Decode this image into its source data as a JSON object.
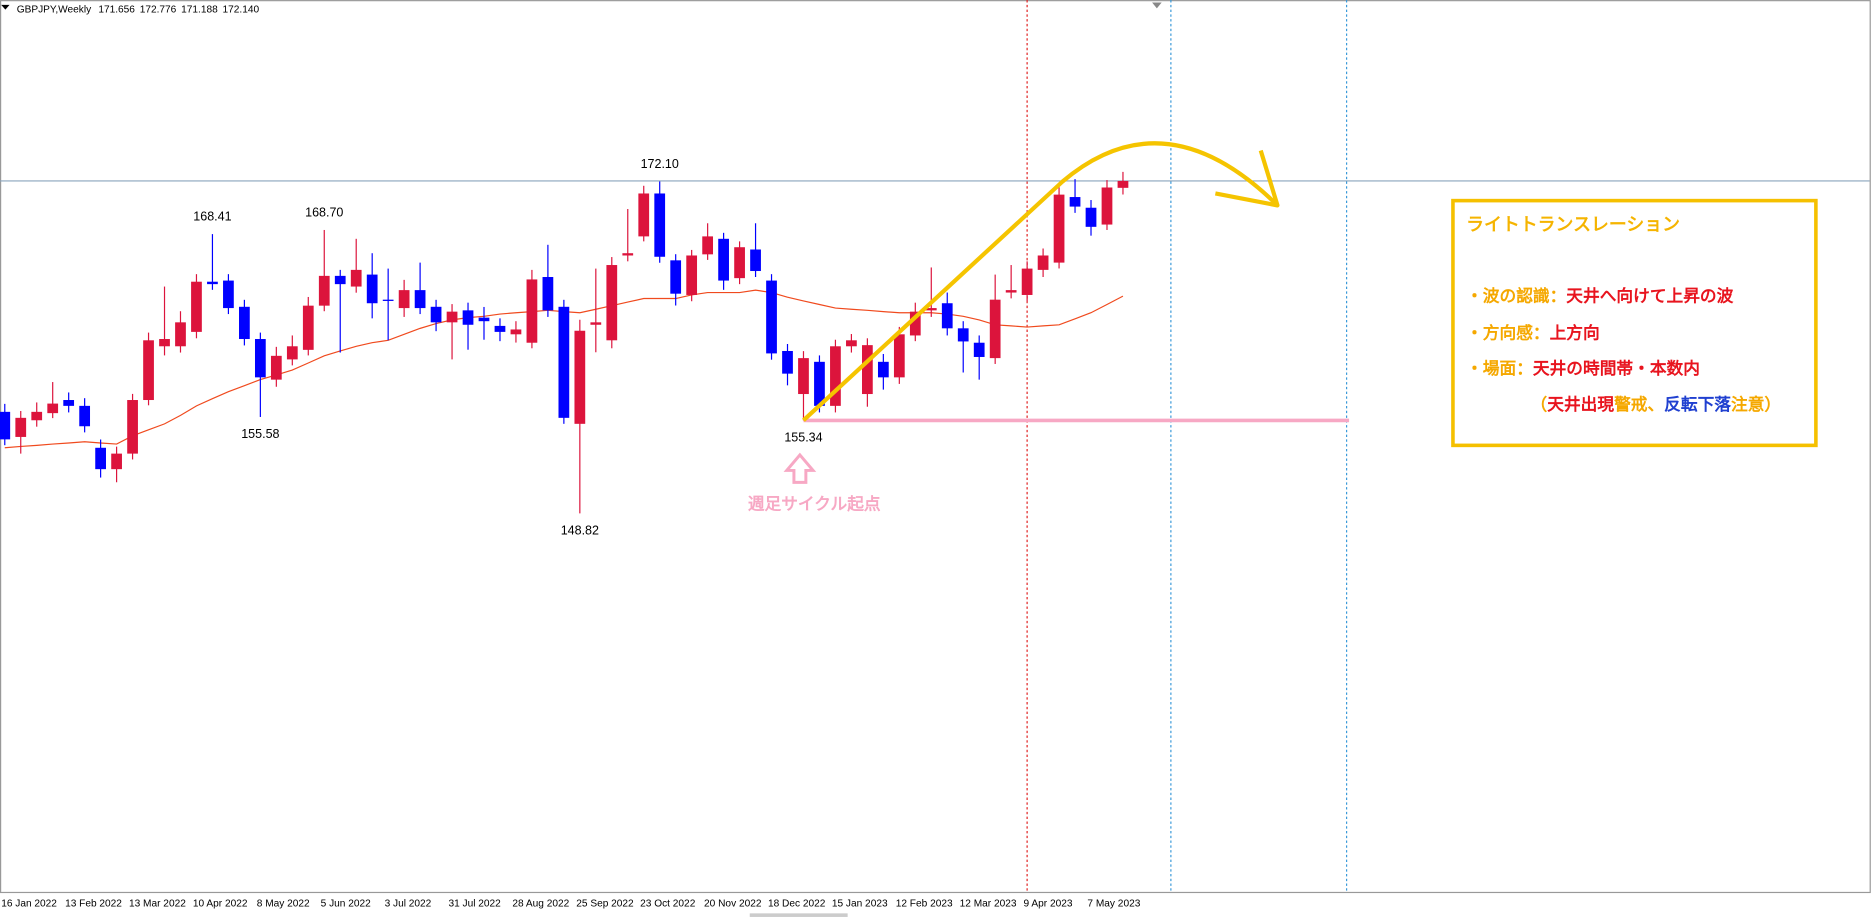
{
  "chart_data": {
    "type": "candlestick",
    "symbol": "GBPJPY,Weekly",
    "header_values": [
      {
        "value": 171.656,
        "label": "171.656"
      },
      {
        "value": 172.776,
        "label": "172.776"
      },
      {
        "value": 171.188,
        "label": "171.188"
      },
      {
        "value": 172.14,
        "label": "172.140"
      }
    ],
    "categories": [
      "16 Jan 2022",
      null,
      null,
      null,
      "13 Feb 2022",
      null,
      null,
      null,
      "13 Mar 2022",
      null,
      null,
      null,
      "10 Apr 2022",
      null,
      null,
      null,
      "8 May 2022",
      null,
      null,
      null,
      "5 Jun 2022",
      null,
      null,
      null,
      "3 Jul 2022",
      null,
      null,
      null,
      "31 Jul 2022",
      null,
      null,
      null,
      "28 Aug 2022",
      null,
      null,
      null,
      "25 Sep 2022",
      null,
      null,
      null,
      "23 Oct 2022",
      null,
      null,
      null,
      "20 Nov 2022",
      null,
      null,
      null,
      "18 Dec 2022",
      null,
      null,
      null,
      "15 Jan 2023",
      null,
      null,
      null,
      "12 Feb 2023",
      null,
      null,
      null,
      "12 Mar 2023",
      null,
      null,
      null,
      "9 Apr 2023",
      null,
      null,
      null,
      "7 May 2023",
      null,
      null
    ],
    "open": [
      155.94,
      154.18,
      155.35,
      155.85,
      156.77,
      156.36,
      153.42,
      151.92,
      153.01,
      156.77,
      160.54,
      160.54,
      161.55,
      165.07,
      165.15,
      163.31,
      161.05,
      158.2,
      159.62,
      160.29,
      163.39,
      165.48,
      164.73,
      165.57,
      163.81,
      163.22,
      164.48,
      163.31,
      162.22,
      163.06,
      162.55,
      161.97,
      161.38,
      160.79,
      165.4,
      163.31,
      155.1,
      162.05,
      160.96,
      166.91,
      168.25,
      171.26,
      166.57,
      164.14,
      166.99,
      168.08,
      165.32,
      167.33,
      165.15,
      160.21,
      157.19,
      159.45,
      156.36,
      160.54,
      157.19,
      159.45,
      158.36,
      161.3,
      163.06,
      163.56,
      161.8,
      160.79,
      159.71,
      164.31,
      164.14,
      165.9,
      166.41,
      171.01,
      170.26,
      169.08,
      171.656
    ],
    "high": [
      156.5,
      156.0,
      156.6,
      158.03,
      157.3,
      156.9,
      154.0,
      153.5,
      157.2,
      161.5,
      164.73,
      163.0,
      165.6,
      168.41,
      165.6,
      163.8,
      161.5,
      160.5,
      161.3,
      164.0,
      168.7,
      165.9,
      168.08,
      167.07,
      165.99,
      165.2,
      166.41,
      163.8,
      163.5,
      163.6,
      163.3,
      162.5,
      162.3,
      165.9,
      167.66,
      163.8,
      162.4,
      165.99,
      166.8,
      170.17,
      171.8,
      172.1,
      167.0,
      167.3,
      169.17,
      168.5,
      167.9,
      169.17,
      165.6,
      160.7,
      160.2,
      159.9,
      161.0,
      161.4,
      161.1,
      160.0,
      161.9,
      163.6,
      166.07,
      164.31,
      162.3,
      161.3,
      165.57,
      166.24,
      166.5,
      167.4,
      171.7,
      172.27,
      170.8,
      172.2,
      172.776
    ],
    "low": [
      153.6,
      153.01,
      154.9,
      155.5,
      155.9,
      154.5,
      151.33,
      151.0,
      152.6,
      156.4,
      159.9,
      160.1,
      161.1,
      164.5,
      162.8,
      160.6,
      155.58,
      157.7,
      159.2,
      159.9,
      163.0,
      160.1,
      164.3,
      162.5,
      160.96,
      162.6,
      162.8,
      161.6,
      159.62,
      160.3,
      161.0,
      160.9,
      160.8,
      160.4,
      162.6,
      155.1,
      148.82,
      160.12,
      160.4,
      166.5,
      167.9,
      166.4,
      163.4,
      163.7,
      166.6,
      164.5,
      164.9,
      165.4,
      159.6,
      157.8,
      155.34,
      155.9,
      155.9,
      160.1,
      156.3,
      157.5,
      157.9,
      160.9,
      162.6,
      161.3,
      158.7,
      158.2,
      159.3,
      163.9,
      163.7,
      165.4,
      166.0,
      169.9,
      168.3,
      168.7,
      171.188
    ],
    "close": [
      154.01,
      155.52,
      155.94,
      156.52,
      156.36,
      154.93,
      151.92,
      153.01,
      156.77,
      160.96,
      161.05,
      162.22,
      165.07,
      164.9,
      163.22,
      161.05,
      158.36,
      159.87,
      160.54,
      163.39,
      165.48,
      164.9,
      165.9,
      163.56,
      163.72,
      164.48,
      163.22,
      162.22,
      162.97,
      162.05,
      162.3,
      161.55,
      161.72,
      165.23,
      163.06,
      155.52,
      161.63,
      162.22,
      166.24,
      167.07,
      171.26,
      166.82,
      164.23,
      166.91,
      168.25,
      165.15,
      167.49,
      165.82,
      160.04,
      158.62,
      159.71,
      156.36,
      160.54,
      160.96,
      160.62,
      158.36,
      161.38,
      162.97,
      163.22,
      161.8,
      160.88,
      159.79,
      163.81,
      164.48,
      165.99,
      166.91,
      171.18,
      170.34,
      168.92,
      171.68,
      172.14
    ],
    "high_labels": [
      null,
      null,
      null,
      null,
      null,
      null,
      null,
      null,
      null,
      null,
      null,
      null,
      null,
      "168.41",
      null,
      null,
      null,
      null,
      null,
      null,
      "168.70",
      null,
      null,
      null,
      null,
      null,
      null,
      null,
      null,
      null,
      null,
      null,
      null,
      null,
      null,
      null,
      null,
      null,
      null,
      null,
      null,
      "172.10",
      null,
      null,
      null,
      null,
      null,
      null,
      null,
      null,
      null,
      null,
      null,
      null,
      null,
      null,
      null,
      null,
      null,
      null,
      null,
      null,
      null,
      null,
      null,
      null,
      null,
      null,
      null,
      null,
      null
    ],
    "low_labels": [
      null,
      null,
      null,
      null,
      null,
      null,
      null,
      null,
      null,
      null,
      null,
      null,
      null,
      null,
      null,
      null,
      "155.58",
      null,
      null,
      null,
      null,
      null,
      null,
      null,
      null,
      null,
      null,
      null,
      null,
      null,
      null,
      null,
      null,
      null,
      null,
      null,
      "148.82",
      null,
      null,
      null,
      null,
      null,
      null,
      null,
      null,
      null,
      null,
      null,
      null,
      null,
      "155.34",
      null,
      null,
      null,
      null,
      null,
      null,
      null,
      null,
      null,
      null,
      null,
      null,
      null,
      null,
      null,
      null,
      null,
      null,
      null,
      null
    ],
    "up_color": "#dc143c",
    "down_color": "#0000ff",
    "ma": {
      "color": "#f04a1e",
      "values": [
        153.42,
        153.51,
        153.59,
        153.68,
        153.76,
        153.84,
        153.76,
        153.68,
        154.26,
        154.68,
        155.1,
        155.69,
        156.36,
        156.86,
        157.36,
        157.78,
        158.2,
        158.53,
        158.87,
        159.37,
        159.87,
        160.21,
        160.54,
        160.79,
        160.96,
        161.38,
        161.8,
        162.13,
        162.39,
        162.55,
        162.64,
        162.8,
        162.89,
        162.97,
        163.06,
        162.97,
        162.89,
        163.14,
        163.39,
        163.64,
        163.89,
        163.89,
        163.89,
        164.14,
        164.31,
        164.31,
        164.31,
        164.48,
        164.31,
        163.98,
        163.72,
        163.47,
        163.22,
        163.14,
        163.06,
        162.97,
        162.89,
        162.89,
        162.89,
        162.8,
        162.64,
        162.39,
        162.05,
        161.97,
        161.89,
        161.97,
        162.05,
        162.47,
        162.89,
        163.47,
        164.06
      ]
    },
    "ylim": [
      122.18,
      184.83
    ],
    "annotation": "週足サイクル起点",
    "info_box": {
      "title": "ライトトランスレーション",
      "title_color": "#f5b400",
      "border_color": "#f5c000",
      "lines": [
        [
          {
            "text": "・波の認識：",
            "color": "#f5a800"
          },
          {
            "text": "天井へ向けて上昇の波",
            "color": "#e8141e"
          }
        ],
        [
          {
            "text": "・方向感：",
            "color": "#f5a800"
          },
          {
            "text": "上方向",
            "color": "#e8141e"
          }
        ],
        [
          {
            "text": "・場面：",
            "color": "#f5a800"
          },
          {
            "text": "天井の時間帯・本数内",
            "color": "#e8141e"
          }
        ],
        [
          {
            "text": "（",
            "color": "#f5a800"
          },
          {
            "text": "天井出現",
            "color": "#e8141e"
          },
          {
            "text": "警戒、",
            "color": "#f5a800"
          },
          {
            "text": "反転下落",
            "color": "#2040d0"
          },
          {
            "text": "注意",
            "color": "#f5a800"
          },
          {
            "text": "）",
            "color": "#f5a800"
          }
        ]
      ]
    }
  }
}
